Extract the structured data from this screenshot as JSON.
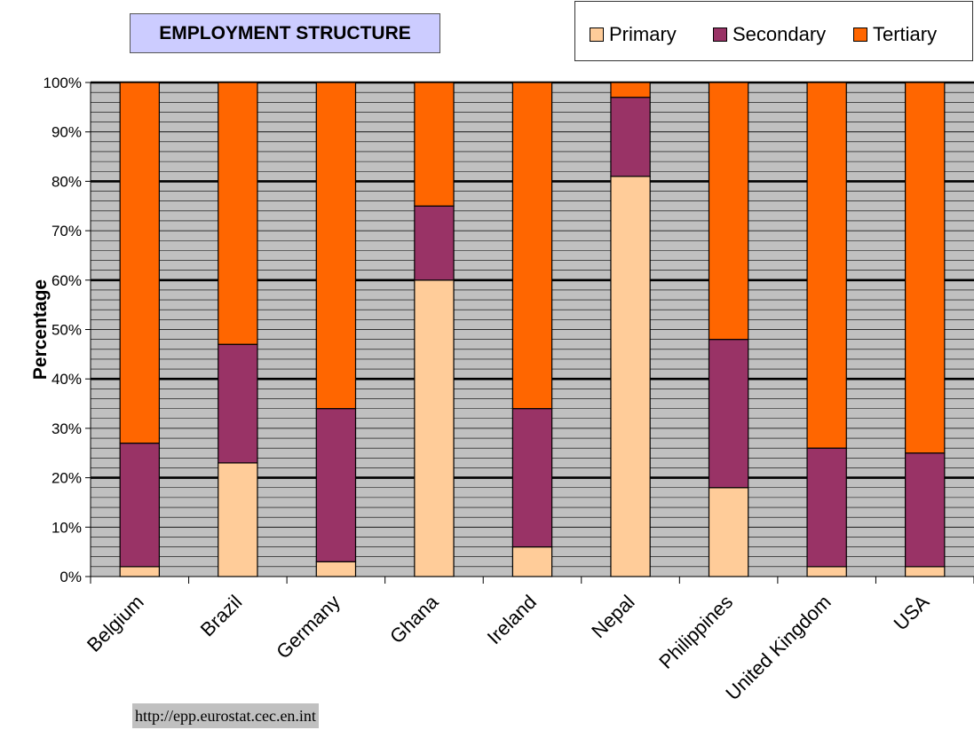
{
  "chart_data": {
    "type": "bar",
    "stacked": true,
    "title": "EMPLOYMENT STRUCTURE",
    "ylabel": "Percentage",
    "xlabel": "",
    "ylim": [
      0,
      100
    ],
    "y_ticks": [
      "0%",
      "10%",
      "20%",
      "30%",
      "40%",
      "50%",
      "60%",
      "70%",
      "80%",
      "90%",
      "100%"
    ],
    "categories": [
      "Belgium",
      "Brazil",
      "Germany",
      "Ghana",
      "Ireland",
      "Nepal",
      "Philippines",
      "United Kingdom",
      "USA"
    ],
    "series": [
      {
        "name": "Primary",
        "color": "#ffcc99",
        "values": [
          2,
          23,
          3,
          60,
          6,
          81,
          18,
          2,
          2
        ]
      },
      {
        "name": "Secondary",
        "color": "#993366",
        "values": [
          25,
          24,
          31,
          15,
          28,
          16,
          30,
          24,
          23
        ]
      },
      {
        "name": "Tertiary",
        "color": "#ff6600",
        "values": [
          73,
          53,
          66,
          25,
          66,
          3,
          52,
          74,
          75
        ]
      }
    ],
    "grid": true,
    "legend_position": "top-right"
  },
  "source": "http://epp.eurostat.cec.en.int"
}
